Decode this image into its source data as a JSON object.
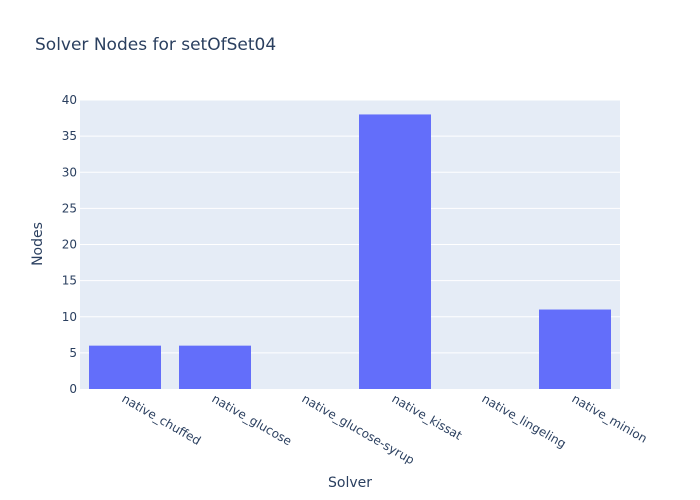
{
  "chart_data": {
    "type": "bar",
    "title": "Solver Nodes for setOfSet04",
    "xlabel": "Solver",
    "ylabel": "Nodes",
    "categories": [
      "native_chuffed",
      "native_glucose",
      "native_glucose-syrup",
      "native_kissat",
      "native_lingeling",
      "native_minion"
    ],
    "values": [
      6,
      6,
      0,
      38,
      0,
      11
    ],
    "ylim": [
      0,
      40
    ],
    "yticks": [
      0,
      5,
      10,
      15,
      20,
      25,
      30,
      35,
      40
    ],
    "grid": true,
    "legend": "none",
    "colors": {
      "bar": "#636efa",
      "plot_bg": "#e5ecf6",
      "grid": "#ffffff",
      "text": "#2a3f5f"
    }
  }
}
